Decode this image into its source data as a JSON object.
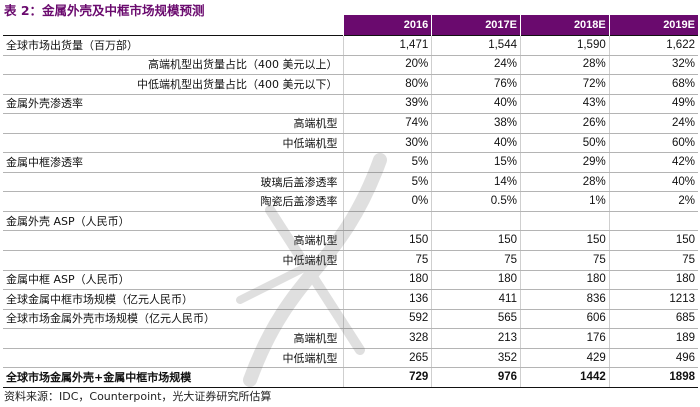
{
  "title": "表 2：金属外壳及中框市场规模预测",
  "table": {
    "headers": [
      "",
      "2016",
      "2017E",
      "2018E",
      "2019E"
    ],
    "rows": [
      {
        "label": "全球市场出货量（百万部）",
        "sub": false,
        "values": [
          "1,471",
          "1,544",
          "1,590",
          "1,622"
        ]
      },
      {
        "label": "高端机型出货量占比（400 美元以上）",
        "sub": true,
        "values": [
          "20%",
          "24%",
          "28%",
          "32%"
        ]
      },
      {
        "label": "中低端机型出货量占比（400 美元以下）",
        "sub": true,
        "values": [
          "80%",
          "76%",
          "72%",
          "68%"
        ]
      },
      {
        "label": "金属外壳渗透率",
        "sub": false,
        "values": [
          "39%",
          "40%",
          "43%",
          "49%"
        ]
      },
      {
        "label": "高端机型",
        "sub": true,
        "values": [
          "74%",
          "38%",
          "26%",
          "24%"
        ]
      },
      {
        "label": "中低端机型",
        "sub": true,
        "values": [
          "30%",
          "40%",
          "50%",
          "60%"
        ]
      },
      {
        "label": "金属中框渗透率",
        "sub": false,
        "values": [
          "5%",
          "15%",
          "29%",
          "42%"
        ]
      },
      {
        "label": "玻璃后盖渗透率",
        "sub": true,
        "values": [
          "5%",
          "14%",
          "28%",
          "40%"
        ]
      },
      {
        "label": "陶瓷后盖渗透率",
        "sub": true,
        "values": [
          "0%",
          "0.5%",
          "1%",
          "2%"
        ]
      },
      {
        "label": "金属外壳 ASP（人民币）",
        "sub": false,
        "values": [
          "",
          "",
          "",
          ""
        ]
      },
      {
        "label": "高端机型",
        "sub": true,
        "values": [
          "150",
          "150",
          "150",
          "150"
        ]
      },
      {
        "label": "中低端机型",
        "sub": true,
        "values": [
          "75",
          "75",
          "75",
          "75"
        ]
      },
      {
        "label": "金属中框 ASP（人民币）",
        "sub": false,
        "values": [
          "180",
          "180",
          "180",
          "180"
        ]
      },
      {
        "label": "全球金属中框市场规模（亿元人民币）",
        "sub": false,
        "values": [
          "136",
          "411",
          "836",
          "1213"
        ]
      },
      {
        "label": "全球市场金属外壳市场规模（亿元人民币）",
        "sub": false,
        "values": [
          "592",
          "565",
          "606",
          "685"
        ]
      },
      {
        "label": "高端机型",
        "sub": true,
        "values": [
          "328",
          "213",
          "176",
          "189"
        ]
      },
      {
        "label": "中低端机型",
        "sub": true,
        "values": [
          "265",
          "352",
          "429",
          "496"
        ]
      }
    ],
    "total": {
      "label": "全球市场金属外壳+金属中框市场规模",
      "values": [
        "729",
        "976",
        "1442",
        "1898"
      ]
    }
  },
  "source": "资料来源：IDC，Counterpoint，光大证券研究所估算",
  "colors": {
    "header_bg": "#6a0a6e",
    "title": "#6a0a6e"
  }
}
